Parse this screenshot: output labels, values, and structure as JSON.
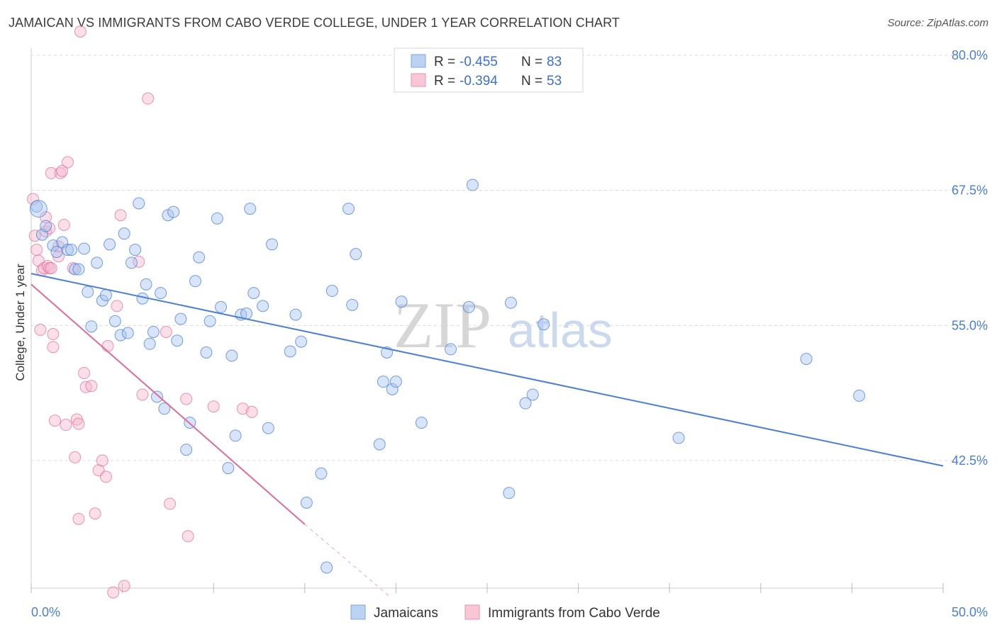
{
  "title": "JAMAICAN VS IMMIGRANTS FROM CABO VERDE COLLEGE, UNDER 1 YEAR CORRELATION CHART",
  "source": "Source: ZipAtlas.com",
  "watermark": {
    "zip": "ZIP",
    "atlas": "atlas"
  },
  "colors": {
    "blue": "#4a7fd4",
    "blue_fill": "#a9c4ee",
    "pink": "#e06a98",
    "pink_fill": "#f4b7cc",
    "grid": "#dddddd"
  },
  "legend_top": {
    "rows": [
      {
        "r_label": "R =",
        "r_value": "-0.455",
        "n_label": "N =",
        "n_value": "83"
      },
      {
        "r_label": "R =",
        "r_value": "-0.394",
        "n_label": "N =",
        "n_value": "53"
      }
    ]
  },
  "legend_bottom": [
    "Jamaicans",
    "Immigrants from Cabo Verde"
  ],
  "chart_data": {
    "type": "scatter",
    "title": "JAMAICAN VS IMMIGRANTS FROM CABO VERDE COLLEGE, UNDER 1 YEAR CORRELATION CHART",
    "xlabel": "",
    "ylabel": "College, Under 1 year",
    "xlim": [
      0,
      50
    ],
    "ylim": [
      30,
      82
    ],
    "x_tick_labels": [
      "0.0%",
      "50.0%"
    ],
    "y_ticks": [
      42.5,
      55.0,
      67.5,
      80.0
    ],
    "y_tick_labels": [
      "42.5%",
      "55.0%",
      "67.5%",
      "80.0%"
    ],
    "grid": true,
    "legend_placement": "top-center",
    "series": [
      {
        "name": "Jamaicans",
        "color": "#4a7fd4",
        "trend": {
          "x": [
            0,
            50
          ],
          "y": [
            59.8,
            42.0
          ]
        },
        "points": [
          [
            0.3,
            66.0
          ],
          [
            0.4,
            65.8
          ],
          [
            0.6,
            63.4
          ],
          [
            0.8,
            64.2
          ],
          [
            1.2,
            62.4
          ],
          [
            1.4,
            61.8
          ],
          [
            1.7,
            62.7
          ],
          [
            2.0,
            62.0
          ],
          [
            2.2,
            62.0
          ],
          [
            2.4,
            60.2
          ],
          [
            2.6,
            60.2
          ],
          [
            2.9,
            62.1
          ],
          [
            3.1,
            58.1
          ],
          [
            3.3,
            54.9
          ],
          [
            3.6,
            60.8
          ],
          [
            3.9,
            57.3
          ],
          [
            4.1,
            57.8
          ],
          [
            4.3,
            62.5
          ],
          [
            4.6,
            55.4
          ],
          [
            4.9,
            54.1
          ],
          [
            5.1,
            63.5
          ],
          [
            5.3,
            54.3
          ],
          [
            5.5,
            60.8
          ],
          [
            5.7,
            62.0
          ],
          [
            5.9,
            66.3
          ],
          [
            6.1,
            57.5
          ],
          [
            6.3,
            58.8
          ],
          [
            6.5,
            53.3
          ],
          [
            6.7,
            54.4
          ],
          [
            6.9,
            48.4
          ],
          [
            7.1,
            58.0
          ],
          [
            7.3,
            47.3
          ],
          [
            7.5,
            65.2
          ],
          [
            7.8,
            65.5
          ],
          [
            8.0,
            53.6
          ],
          [
            8.2,
            55.6
          ],
          [
            8.5,
            43.5
          ],
          [
            8.7,
            46.0
          ],
          [
            9.0,
            59.1
          ],
          [
            9.2,
            61.3
          ],
          [
            9.6,
            52.5
          ],
          [
            9.8,
            55.4
          ],
          [
            10.2,
            64.9
          ],
          [
            10.4,
            56.7
          ],
          [
            10.8,
            41.8
          ],
          [
            11.0,
            52.2
          ],
          [
            11.2,
            44.8
          ],
          [
            11.5,
            56.0
          ],
          [
            11.8,
            56.1
          ],
          [
            12.0,
            65.8
          ],
          [
            12.2,
            58.0
          ],
          [
            12.7,
            56.8
          ],
          [
            13.0,
            45.5
          ],
          [
            13.2,
            62.5
          ],
          [
            14.2,
            52.6
          ],
          [
            14.5,
            56.0
          ],
          [
            14.8,
            53.5
          ],
          [
            15.1,
            38.6
          ],
          [
            15.9,
            41.3
          ],
          [
            16.2,
            32.6
          ],
          [
            16.5,
            58.2
          ],
          [
            17.4,
            65.8
          ],
          [
            17.6,
            56.9
          ],
          [
            17.8,
            61.6
          ],
          [
            19.1,
            44.0
          ],
          [
            19.3,
            49.8
          ],
          [
            19.5,
            52.5
          ],
          [
            19.8,
            49.1
          ],
          [
            20.0,
            49.8
          ],
          [
            20.3,
            57.2
          ],
          [
            21.4,
            46.0
          ],
          [
            23.0,
            52.8
          ],
          [
            24.0,
            56.7
          ],
          [
            24.2,
            68.0
          ],
          [
            26.2,
            39.5
          ],
          [
            26.3,
            57.1
          ],
          [
            27.1,
            47.8
          ],
          [
            27.5,
            48.6
          ],
          [
            28.1,
            55.1
          ],
          [
            35.5,
            44.6
          ],
          [
            42.5,
            51.9
          ],
          [
            45.4,
            48.5
          ]
        ],
        "sizes_note_point": [
          0.4,
          65.8
        ]
      },
      {
        "name": "Immigrants from Cabo Verde",
        "color": "#e06a98",
        "trend": {
          "x": [
            0,
            15
          ],
          "y": [
            58.8,
            36.6
          ]
        },
        "trend_dashed": {
          "x": [
            15,
            19.6
          ],
          "y": [
            36.6,
            30.0
          ]
        },
        "points": [
          [
            0.1,
            66.7
          ],
          [
            0.2,
            63.3
          ],
          [
            0.3,
            62.0
          ],
          [
            0.4,
            61.0
          ],
          [
            0.5,
            54.6
          ],
          [
            0.6,
            60.1
          ],
          [
            0.7,
            60.3
          ],
          [
            0.8,
            65.0
          ],
          [
            0.8,
            63.7
          ],
          [
            0.9,
            60.5
          ],
          [
            1.0,
            60.3
          ],
          [
            1.0,
            64.0
          ],
          [
            1.1,
            69.1
          ],
          [
            1.1,
            60.3
          ],
          [
            1.2,
            54.2
          ],
          [
            1.2,
            53.0
          ],
          [
            1.3,
            46.2
          ],
          [
            1.5,
            62.3
          ],
          [
            1.5,
            61.4
          ],
          [
            1.6,
            69.1
          ],
          [
            1.7,
            69.3
          ],
          [
            1.8,
            64.3
          ],
          [
            1.9,
            45.8
          ],
          [
            2.0,
            70.1
          ],
          [
            2.3,
            60.3
          ],
          [
            2.4,
            42.8
          ],
          [
            2.5,
            46.3
          ],
          [
            2.6,
            45.9
          ],
          [
            2.6,
            37.1
          ],
          [
            2.7,
            82.2
          ],
          [
            2.9,
            50.6
          ],
          [
            3.0,
            49.3
          ],
          [
            3.3,
            49.4
          ],
          [
            3.5,
            37.6
          ],
          [
            3.7,
            41.6
          ],
          [
            3.9,
            42.5
          ],
          [
            4.1,
            41.0
          ],
          [
            4.2,
            53.1
          ],
          [
            4.5,
            30.3
          ],
          [
            4.7,
            56.8
          ],
          [
            4.9,
            65.2
          ],
          [
            5.1,
            30.9
          ],
          [
            5.9,
            60.9
          ],
          [
            6.1,
            48.6
          ],
          [
            6.4,
            76.0
          ],
          [
            7.4,
            54.4
          ],
          [
            7.6,
            38.5
          ],
          [
            8.5,
            48.2
          ],
          [
            8.6,
            35.5
          ],
          [
            10.0,
            47.5
          ],
          [
            11.6,
            47.3
          ],
          [
            12.1,
            47.0
          ]
        ]
      }
    ]
  }
}
